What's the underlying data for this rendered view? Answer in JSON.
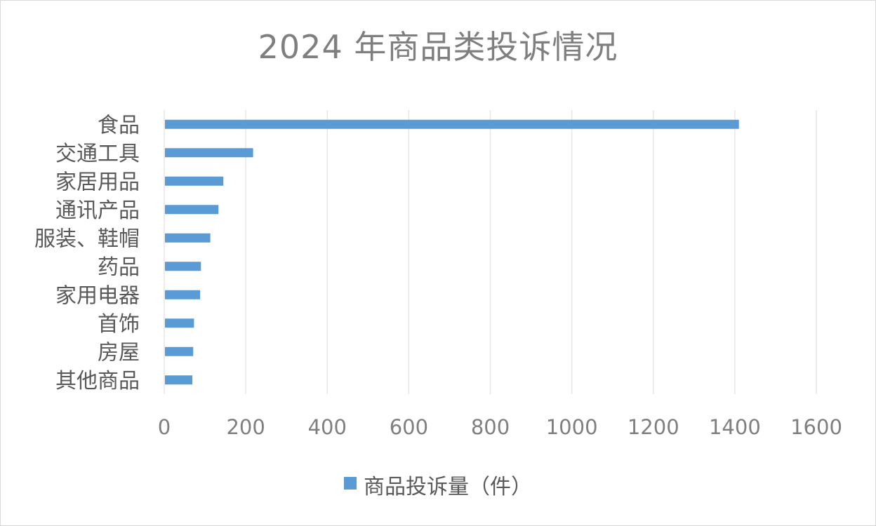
{
  "chart_data": {
    "type": "bar",
    "orientation": "horizontal",
    "title": "2024 年商品类投诉情况",
    "categories": [
      "食品",
      "交通工具",
      "家居用品",
      "通讯产品",
      "服装、鞋帽",
      "药品",
      "家用电器",
      "首饰",
      "房屋",
      "其他商品"
    ],
    "series": [
      {
        "name": "商品投诉量（件）",
        "values": [
          1410,
          218,
          145,
          133,
          113,
          90,
          88,
          73,
          71,
          69
        ]
      }
    ],
    "xlim": [
      0,
      1600
    ],
    "xticks": [
      0,
      200,
      400,
      600,
      800,
      1000,
      1200,
      1400,
      1600
    ],
    "grid": true,
    "legend_position": "bottom",
    "bar_color": "#5b9bd5",
    "grid_color": "#e6e6e6",
    "text_color": "#7f7f7f",
    "category_label_color": "#595959"
  }
}
